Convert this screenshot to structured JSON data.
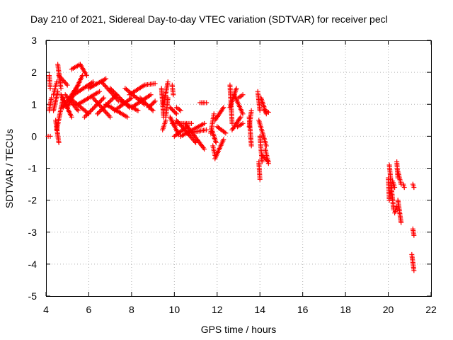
{
  "chart_data": {
    "type": "scatter",
    "title": "Day 210 of 2021, Sidereal Day-to-day VTEC variation (SDTVAR) for receiver pecl",
    "xlabel": "GPS time / hours",
    "ylabel": "SDTVAR / TECUs",
    "xlim": [
      4,
      22
    ],
    "ylim": [
      -5,
      3
    ],
    "xticks": [
      "4",
      "6",
      "8",
      "10",
      "12",
      "14",
      "16",
      "18",
      "20",
      "22"
    ],
    "yticks": [
      "3",
      "2",
      "1",
      "0",
      "-1",
      "-2",
      "-3",
      "-4",
      "-5"
    ],
    "grid": true,
    "marker": "+",
    "color": "#ff0000",
    "series": [
      {
        "name": "SDTVAR",
        "segments": [
          {
            "from": [
              4.1,
              0.0
            ],
            "to": [
              4.2,
              0.0
            ]
          },
          {
            "from": [
              4.15,
              1.9
            ],
            "to": [
              4.2,
              1.5
            ]
          },
          {
            "from": [
              4.15,
              0.8
            ],
            "to": [
              4.25,
              1.2
            ]
          },
          {
            "from": [
              4.35,
              1.3
            ],
            "to": [
              4.5,
              1.7
            ]
          },
          {
            "from": [
              4.35,
              0.8
            ],
            "to": [
              4.55,
              1.4
            ]
          },
          {
            "from": [
              4.45,
              0.5
            ],
            "to": [
              4.6,
              -0.2
            ]
          },
          {
            "from": [
              4.5,
              0.2
            ],
            "to": [
              4.8,
              1.2
            ]
          },
          {
            "from": [
              4.55,
              2.25
            ],
            "to": [
              4.7,
              1.5
            ]
          },
          {
            "from": [
              4.6,
              1.9
            ],
            "to": [
              5.0,
              1.6
            ]
          },
          {
            "from": [
              4.7,
              1.3
            ],
            "to": [
              5.2,
              0.6
            ]
          },
          {
            "from": [
              4.8,
              0.9
            ],
            "to": [
              5.5,
              1.6
            ]
          },
          {
            "from": [
              4.9,
              1.3
            ],
            "to": [
              5.5,
              0.8
            ]
          },
          {
            "from": [
              5.0,
              0.9
            ],
            "to": [
              5.7,
              1.9
            ]
          },
          {
            "from": [
              5.1,
              1.2
            ],
            "to": [
              6.0,
              0.7
            ]
          },
          {
            "from": [
              5.2,
              2.1
            ],
            "to": [
              5.6,
              2.25
            ]
          },
          {
            "from": [
              5.6,
              2.25
            ],
            "to": [
              5.9,
              1.9
            ]
          },
          {
            "from": [
              5.3,
              1.3
            ],
            "to": [
              6.2,
              1.7
            ]
          },
          {
            "from": [
              5.5,
              1.0
            ],
            "to": [
              6.5,
              1.4
            ]
          },
          {
            "from": [
              5.8,
              0.6
            ],
            "to": [
              6.7,
              1.2
            ]
          },
          {
            "from": [
              6.0,
              1.5
            ],
            "to": [
              6.8,
              1.8
            ]
          },
          {
            "from": [
              6.2,
              1.2
            ],
            "to": [
              7.0,
              0.6
            ]
          },
          {
            "from": [
              6.4,
              0.7
            ],
            "to": [
              7.3,
              1.3
            ]
          },
          {
            "from": [
              6.6,
              1.7
            ],
            "to": [
              7.4,
              1.1
            ]
          },
          {
            "from": [
              6.8,
              1.0
            ],
            "to": [
              7.8,
              0.6
            ]
          },
          {
            "from": [
              7.0,
              1.5
            ],
            "to": [
              7.9,
              0.9
            ]
          },
          {
            "from": [
              7.2,
              0.8
            ],
            "to": [
              8.0,
              1.2
            ]
          },
          {
            "from": [
              7.5,
              1.1
            ],
            "to": [
              8.3,
              0.8
            ]
          },
          {
            "from": [
              7.7,
              1.5
            ],
            "to": [
              8.6,
              1.0
            ]
          },
          {
            "from": [
              7.9,
              1.3
            ],
            "to": [
              8.6,
              1.6
            ]
          },
          {
            "from": [
              8.6,
              1.6
            ],
            "to": [
              9.1,
              1.65
            ]
          },
          {
            "from": [
              8.0,
              0.9
            ],
            "to": [
              8.9,
              1.3
            ]
          },
          {
            "from": [
              8.4,
              1.2
            ],
            "to": [
              9.0,
              0.8
            ]
          },
          {
            "from": [
              8.8,
              0.9
            ],
            "to": [
              9.1,
              1.1
            ]
          },
          {
            "from": [
              9.4,
              1.5
            ],
            "to": [
              9.5,
              0.6
            ]
          },
          {
            "from": [
              9.45,
              0.2
            ],
            "to": [
              9.6,
              0.5
            ]
          },
          {
            "from": [
              9.5,
              1.0
            ],
            "to": [
              9.7,
              1.7
            ]
          },
          {
            "from": [
              9.6,
              0.6
            ],
            "to": [
              9.7,
              1.2
            ]
          },
          {
            "from": [
              9.8,
              0.9
            ],
            "to": [
              10.1,
              0.7
            ]
          },
          {
            "from": [
              9.9,
              1.6
            ],
            "to": [
              9.95,
              1.3
            ]
          },
          {
            "from": [
              10.1,
              0.9
            ],
            "to": [
              10.3,
              0.8
            ]
          },
          {
            "from": [
              9.8,
              0.6
            ],
            "to": [
              10.2,
              0.05
            ]
          },
          {
            "from": [
              9.9,
              0.4
            ],
            "to": [
              10.8,
              0.4
            ]
          },
          {
            "from": [
              10.0,
              0.0
            ],
            "to": [
              10.6,
              0.3
            ]
          },
          {
            "from": [
              10.1,
              0.5
            ],
            "to": [
              11.0,
              -0.2
            ]
          },
          {
            "from": [
              10.3,
              0.0
            ],
            "to": [
              11.4,
              0.4
            ]
          },
          {
            "from": [
              10.5,
              0.4
            ],
            "to": [
              11.4,
              -0.4
            ]
          },
          {
            "from": [
              10.6,
              0.1
            ],
            "to": [
              11.5,
              0.2
            ]
          },
          {
            "from": [
              11.2,
              1.05
            ],
            "to": [
              11.5,
              1.05
            ]
          },
          {
            "from": [
              11.7,
              0.1
            ],
            "to": [
              11.85,
              0.7
            ]
          },
          {
            "from": [
              11.75,
              0.2
            ],
            "to": [
              11.95,
              -0.2
            ]
          },
          {
            "from": [
              11.8,
              -0.3
            ],
            "to": [
              11.9,
              -0.6
            ]
          },
          {
            "from": [
              11.9,
              0.5
            ],
            "to": [
              12.3,
              0.9
            ]
          },
          {
            "from": [
              11.9,
              -0.7
            ],
            "to": [
              12.3,
              -0.1
            ]
          },
          {
            "from": [
              12.0,
              0.3
            ],
            "to": [
              12.4,
              0.1
            ]
          },
          {
            "from": [
              12.6,
              1.6
            ],
            "to": [
              12.7,
              0.4
            ]
          },
          {
            "from": [
              12.6,
              0.9
            ],
            "to": [
              12.9,
              1.5
            ]
          },
          {
            "from": [
              12.7,
              0.2
            ],
            "to": [
              13.1,
              0.6
            ]
          },
          {
            "from": [
              12.8,
              1.3
            ],
            "to": [
              13.2,
              0.7
            ]
          },
          {
            "from": [
              13.0,
              1.2
            ],
            "to": [
              13.2,
              1.3
            ]
          },
          {
            "from": [
              12.95,
              0.3
            ],
            "to": [
              13.2,
              0.4
            ]
          },
          {
            "from": [
              13.5,
              0.6
            ],
            "to": [
              13.6,
              -0.3
            ]
          },
          {
            "from": [
              13.5,
              0.3
            ],
            "to": [
              13.6,
              0.8
            ]
          },
          {
            "from": [
              13.9,
              1.4
            ],
            "to": [
              14.0,
              0.8
            ]
          },
          {
            "from": [
              13.95,
              0.5
            ],
            "to": [
              14.3,
              -0.3
            ]
          },
          {
            "from": [
              14.0,
              0.0
            ],
            "to": [
              14.1,
              -0.8
            ]
          },
          {
            "from": [
              13.95,
              -0.8
            ],
            "to": [
              14.0,
              -1.35
            ]
          },
          {
            "from": [
              14.05,
              1.2
            ],
            "to": [
              14.3,
              0.7
            ]
          },
          {
            "from": [
              14.1,
              -0.6
            ],
            "to": [
              14.4,
              -0.8
            ]
          },
          {
            "from": [
              14.2,
              0.8
            ],
            "to": [
              14.4,
              0.75
            ]
          },
          {
            "from": [
              14.25,
              -0.4
            ],
            "to": [
              14.4,
              -0.85
            ]
          },
          {
            "from": [
              20.0,
              -1.3
            ],
            "to": [
              20.05,
              -2.0
            ]
          },
          {
            "from": [
              20.05,
              -0.9
            ],
            "to": [
              20.15,
              -1.6
            ]
          },
          {
            "from": [
              20.1,
              -1.3
            ],
            "to": [
              20.25,
              -2.3
            ]
          },
          {
            "from": [
              20.2,
              -1.4
            ],
            "to": [
              20.3,
              -1.6
            ]
          },
          {
            "from": [
              20.3,
              -2.4
            ],
            "to": [
              20.4,
              -2.2
            ]
          },
          {
            "from": [
              20.4,
              -0.8
            ],
            "to": [
              20.45,
              -1.3
            ]
          },
          {
            "from": [
              20.45,
              -2.0
            ],
            "to": [
              20.6,
              -2.7
            ]
          },
          {
            "from": [
              20.45,
              -1.1
            ],
            "to": [
              20.6,
              -1.5
            ]
          },
          {
            "from": [
              20.7,
              -1.5
            ],
            "to": [
              20.75,
              -1.6
            ]
          },
          {
            "from": [
              21.15,
              -1.5
            ],
            "to": [
              21.2,
              -1.6
            ]
          },
          {
            "from": [
              21.15,
              -2.9
            ],
            "to": [
              21.2,
              -3.1
            ]
          },
          {
            "from": [
              21.1,
              -3.7
            ],
            "to": [
              21.2,
              -4.2
            ]
          }
        ]
      }
    ]
  }
}
